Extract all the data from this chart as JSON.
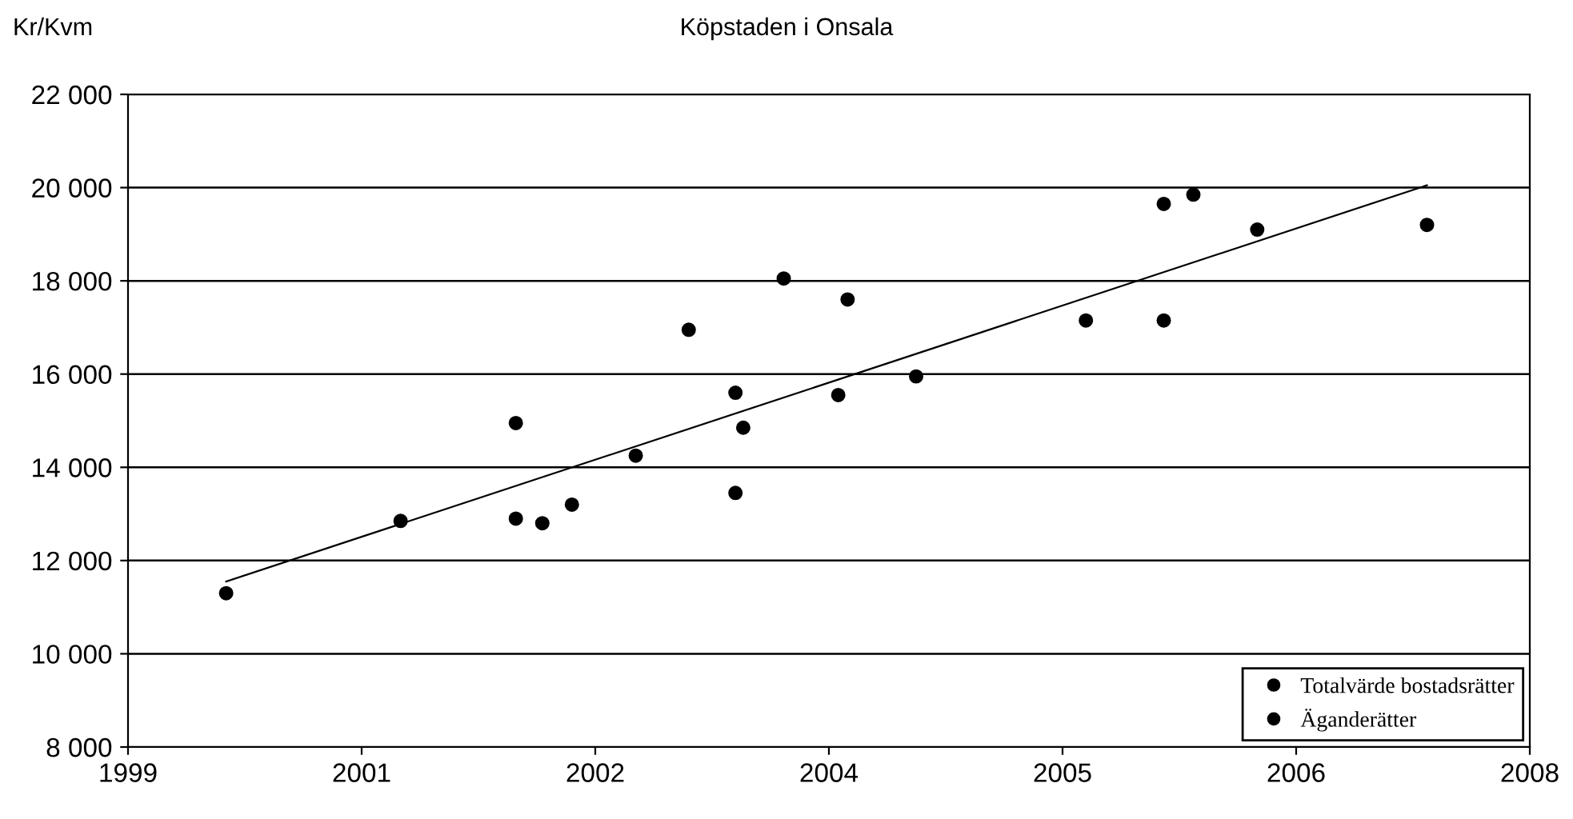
{
  "chart_data": {
    "type": "scatter",
    "title": "Köpstaden i Onsala",
    "ylabel": "Kr/Kvm",
    "xlim": [
      1999,
      2008
    ],
    "xticks": [
      1999,
      {
        "value": 2000.5,
        "label": "2001"
      },
      2002,
      {
        "value": 2003.5,
        "label": "2004"
      },
      2005,
      {
        "value": 2006.5,
        "label": "2006"
      },
      2008
    ],
    "ylim": [
      8000,
      22000
    ],
    "yticks": [
      {
        "value": 8000,
        "label": "8 000"
      },
      {
        "value": 10000,
        "label": "10 000"
      },
      {
        "value": 12000,
        "label": "12 000"
      },
      {
        "value": 14000,
        "label": "14 000"
      },
      {
        "value": 16000,
        "label": "16 000"
      },
      {
        "value": 18000,
        "label": "18 000"
      },
      {
        "value": 20000,
        "label": "20 000"
      },
      {
        "value": 22000,
        "label": "22 000"
      }
    ],
    "grid": "y",
    "legend": "bottom right",
    "marker": "circle",
    "series": [
      {
        "name": "Totalvärde bostadsrätter",
        "color": "#000000",
        "x": [
          1999.63,
          2000.75,
          2001.49,
          2001.49,
          2001.66,
          2001.85,
          2002.26,
          2002.6,
          2002.9,
          2002.95,
          2002.9,
          2003.21,
          2003.62,
          2003.56,
          2004.06,
          2005.15,
          2005.65,
          2005.65,
          2005.84,
          2006.25,
          2007.34
        ],
        "values": [
          11300,
          12850,
          14950,
          12900,
          12800,
          13200,
          14250,
          16950,
          15600,
          14850,
          13450,
          18050,
          17600,
          15550,
          15950,
          17150,
          17150,
          19650,
          19850,
          19100,
          19200
        ]
      },
      {
        "name": "Äganderätter",
        "color": "#000000"
      },
      {
        "type": "line",
        "marker": "none",
        "color": "#000000",
        "x": [
          1999.63,
          2007.34
        ],
        "values": [
          11550,
          20050
        ]
      }
    ]
  }
}
